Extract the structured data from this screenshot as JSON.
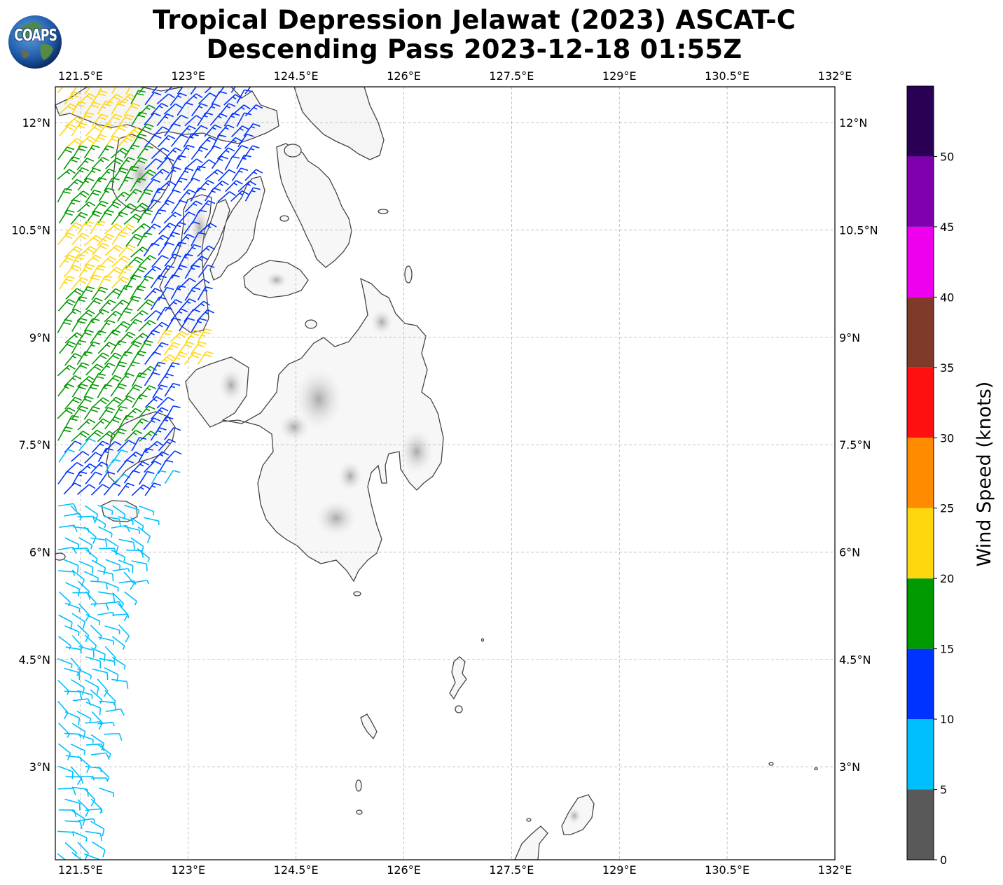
{
  "title": {
    "line1": "Tropical Depression Jelawat (2023) ASCAT-C",
    "line2": "Descending Pass 2023-12-18 01:55Z"
  },
  "logo": {
    "text": "COAPS"
  },
  "map": {
    "lon_ticks": [
      "121.5°E",
      "123°E",
      "124.5°E",
      "126°E",
      "127.5°E",
      "129°E",
      "130.5°E",
      "132°E"
    ],
    "lat_ticks": [
      "12°N",
      "10.5°N",
      "9°N",
      "7.5°N",
      "6°N",
      "4.5°N",
      "3°N"
    ],
    "lon_range": [
      121.15,
      132.0
    ],
    "lat_range": [
      1.7,
      12.5
    ],
    "gridlines": true,
    "colors": {
      "land_outline": "#444444",
      "gridline": "#b3b3b3"
    }
  },
  "colorbar": {
    "title": "Wind Speed (knots)",
    "ticks": [
      "0",
      "5",
      "10",
      "15",
      "20",
      "25",
      "30",
      "35",
      "40",
      "45",
      "50"
    ],
    "bins": [
      {
        "range": [
          0,
          5
        ],
        "color": "#595959"
      },
      {
        "range": [
          5,
          10
        ],
        "color": "#00bfff"
      },
      {
        "range": [
          10,
          15
        ],
        "color": "#0033ff"
      },
      {
        "range": [
          15,
          20
        ],
        "color": "#009900"
      },
      {
        "range": [
          20,
          25
        ],
        "color": "#ffd70f"
      },
      {
        "range": [
          25,
          30
        ],
        "color": "#ff8c00"
      },
      {
        "range": [
          30,
          35
        ],
        "color": "#ff1010"
      },
      {
        "range": [
          35,
          40
        ],
        "color": "#7f3a2a"
      },
      {
        "range": [
          40,
          45
        ],
        "color": "#ee00ee"
      },
      {
        "range": [
          45,
          50
        ],
        "color": "#8000b0"
      },
      {
        "range": [
          50,
          55
        ],
        "color": "#2a0055"
      }
    ]
  }
}
